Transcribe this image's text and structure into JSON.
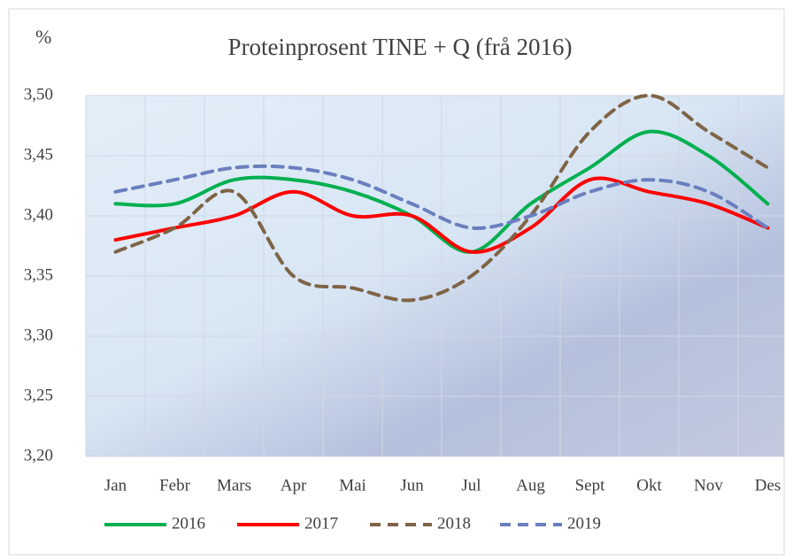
{
  "chart_data": {
    "type": "line",
    "title": "Proteinprosent TINE + Q (frå 2016)",
    "y_label": "%",
    "categories": [
      "Jan",
      "Febr",
      "Mars",
      "Apr",
      "Mai",
      "Jun",
      "Jul",
      "Aug",
      "Sept",
      "Okt",
      "Nov",
      "Des"
    ],
    "series": [
      {
        "name": "2016",
        "color": "#00b050",
        "dashed": false,
        "values": [
          3.41,
          3.41,
          3.43,
          3.43,
          3.42,
          3.4,
          3.37,
          3.41,
          3.44,
          3.47,
          3.45,
          3.41
        ]
      },
      {
        "name": "2017",
        "color": "#ff0000",
        "dashed": false,
        "values": [
          3.38,
          3.39,
          3.4,
          3.42,
          3.4,
          3.4,
          3.37,
          3.39,
          3.43,
          3.42,
          3.41,
          3.39
        ]
      },
      {
        "name": "2018",
        "color": "#7f6445",
        "dashed": true,
        "values": [
          3.37,
          3.39,
          3.42,
          3.35,
          3.34,
          3.33,
          3.35,
          3.4,
          3.47,
          3.5,
          3.47,
          3.44
        ]
      },
      {
        "name": "2019",
        "color": "#6b7fbf",
        "dashed": true,
        "values": [
          3.42,
          3.43,
          3.44,
          3.44,
          3.43,
          3.41,
          3.39,
          3.4,
          3.42,
          3.43,
          3.42,
          3.39
        ]
      }
    ],
    "ylim": [
      3.2,
      3.5
    ],
    "yticks": [
      {
        "value": 3.2,
        "label": "3,20"
      },
      {
        "value": 3.25,
        "label": "3,25"
      },
      {
        "value": 3.3,
        "label": "3,30"
      },
      {
        "value": 3.35,
        "label": "3,35"
      },
      {
        "value": 3.4,
        "label": "3,40"
      },
      {
        "value": 3.45,
        "label": "3,45"
      },
      {
        "value": 3.5,
        "label": "3,50"
      }
    ],
    "grid": true,
    "legend": "bottom"
  }
}
